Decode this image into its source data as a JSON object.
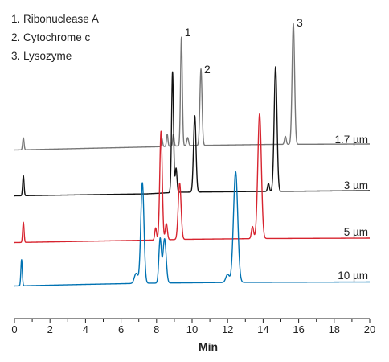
{
  "chart_data": {
    "type": "line",
    "xlabel": "Min",
    "xlim": [
      0,
      20
    ],
    "xticks": [
      0,
      2,
      4,
      6,
      8,
      10,
      12,
      14,
      16,
      18,
      20
    ],
    "grid": false,
    "legend": {
      "position": "top-left",
      "entries": [
        "1. Ribonuclease A",
        "2. Cytochrome c",
        "3. Lysozyme"
      ]
    },
    "peak_labels": [
      {
        "text": "1",
        "x": 9.4
      },
      {
        "text": "2",
        "x": 10.5
      },
      {
        "text": "3",
        "x": 15.7
      }
    ],
    "series": [
      {
        "name": "1.7 µm",
        "color": "#777777",
        "baseline": [
          [
            0,
            0.5
          ],
          [
            7.9,
            1.3
          ],
          [
            9.6,
            1.6
          ],
          [
            14.5,
            1.9
          ],
          [
            20,
            2.0
          ]
        ],
        "peaks": [
          {
            "x": 0.5,
            "h": 3,
            "w": 0.04
          },
          {
            "x": 8.3,
            "h": 2,
            "w": 0.04
          },
          {
            "x": 8.6,
            "h": 3,
            "w": 0.04
          },
          {
            "x": 8.95,
            "h": 3,
            "w": 0.04
          },
          {
            "x": 9.4,
            "h": 27,
            "w": 0.05
          },
          {
            "x": 9.75,
            "h": 2,
            "w": 0.05
          },
          {
            "x": 10.5,
            "h": 19,
            "w": 0.06
          },
          {
            "x": 15.25,
            "h": 2,
            "w": 0.05
          },
          {
            "x": 15.7,
            "h": 30,
            "w": 0.07
          }
        ]
      },
      {
        "name": "3 µm",
        "color": "#111111",
        "baseline": [
          [
            0,
            0.5
          ],
          [
            7.5,
            1.0
          ],
          [
            9.2,
            1.4
          ],
          [
            14.2,
            1.6
          ],
          [
            20,
            1.8
          ]
        ],
        "peaks": [
          {
            "x": 0.5,
            "h": 5,
            "w": 0.04
          },
          {
            "x": 8.9,
            "h": 30,
            "w": 0.055
          },
          {
            "x": 9.1,
            "h": 6,
            "w": 0.05
          },
          {
            "x": 10.15,
            "h": 19,
            "w": 0.07
          },
          {
            "x": 14.3,
            "h": 2,
            "w": 0.05
          },
          {
            "x": 14.7,
            "h": 31,
            "w": 0.08
          }
        ]
      },
      {
        "name": "5 µm",
        "color": "#d7242f",
        "baseline": [
          [
            0,
            0.5
          ],
          [
            7.6,
            1.1
          ],
          [
            9.5,
            1.3
          ],
          [
            14.0,
            1.5
          ],
          [
            20,
            1.6
          ]
        ],
        "peaks": [
          {
            "x": 0.5,
            "h": 5,
            "w": 0.04
          },
          {
            "x": 7.95,
            "h": 3,
            "w": 0.05
          },
          {
            "x": 8.25,
            "h": 27,
            "w": 0.07
          },
          {
            "x": 8.55,
            "h": 4,
            "w": 0.06
          },
          {
            "x": 9.3,
            "h": 14,
            "w": 0.08
          },
          {
            "x": 13.4,
            "h": 3,
            "w": 0.06
          },
          {
            "x": 13.8,
            "h": 31,
            "w": 0.1
          }
        ]
      },
      {
        "name": "10 µm",
        "color": "#0072b2",
        "baseline": [
          [
            0,
            0.5
          ],
          [
            4,
            0.9
          ],
          [
            7.4,
            1.2
          ],
          [
            12.5,
            1.4
          ],
          [
            20,
            1.5
          ]
        ],
        "peaks": [
          {
            "x": 0.4,
            "h": 6.5,
            "w": 0.04
          },
          {
            "x": 6.85,
            "h": 2.5,
            "w": 0.1
          },
          {
            "x": 7.2,
            "h": 25,
            "w": 0.09
          },
          {
            "x": 8.2,
            "h": 11,
            "w": 0.07
          },
          {
            "x": 8.45,
            "h": 11,
            "w": 0.09
          },
          {
            "x": 12.0,
            "h": 2,
            "w": 0.1
          },
          {
            "x": 12.45,
            "h": 27.5,
            "w": 0.12
          }
        ]
      }
    ]
  }
}
